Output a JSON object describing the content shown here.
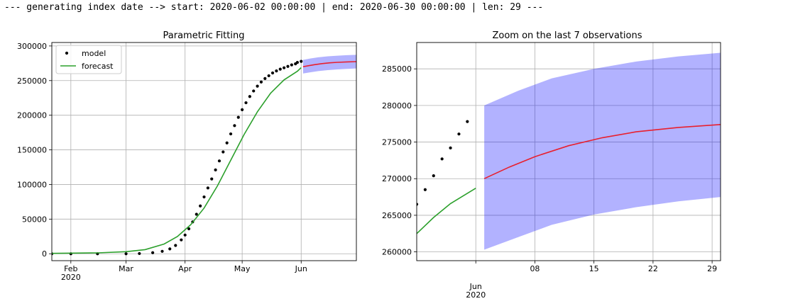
{
  "console": {
    "log_line": "--- generating index date --> start: 2020-06-02 00:00:00 | end: 2020-06-30 00:00:00 | len: 29 ---"
  },
  "colors": {
    "observed": "#000000",
    "fit": "#2ca02c",
    "forecast": "#e8202e",
    "band": "#0000ff",
    "grid": "#b0b0b0"
  },
  "chart_data": [
    {
      "type": "line",
      "title": "Parametric Fitting",
      "legend": {
        "placement": "top-left",
        "entries": [
          "model",
          "forecast"
        ]
      },
      "grid": true,
      "xlabel": "",
      "ylabel": "",
      "xlim": [
        "2020-01-22",
        "2020-06-30"
      ],
      "ylim": [
        -10000,
        305000
      ],
      "x_ticks": [
        {
          "date": "2020-02-01",
          "label": "Feb",
          "sub": "2020"
        },
        {
          "date": "2020-03-01",
          "label": "Mar",
          "sub": ""
        },
        {
          "date": "2020-04-01",
          "label": "Apr",
          "sub": ""
        },
        {
          "date": "2020-05-01",
          "label": "May",
          "sub": ""
        },
        {
          "date": "2020-06-01",
          "label": "Jun",
          "sub": ""
        }
      ],
      "y_ticks": [
        0,
        50000,
        100000,
        150000,
        200000,
        250000,
        300000
      ],
      "series": [
        {
          "name": "model",
          "style": "points",
          "points": [
            [
              "2020-01-22",
              0
            ],
            [
              "2020-02-01",
              0
            ],
            [
              "2020-02-15",
              0
            ],
            [
              "2020-03-01",
              0
            ],
            [
              "2020-03-08",
              300
            ],
            [
              "2020-03-15",
              1500
            ],
            [
              "2020-03-20",
              3500
            ],
            [
              "2020-03-24",
              7000
            ],
            [
              "2020-03-27",
              12000
            ],
            [
              "2020-03-30",
              20000
            ],
            [
              "2020-04-01",
              27000
            ],
            [
              "2020-04-03",
              36000
            ],
            [
              "2020-04-05",
              46000
            ],
            [
              "2020-04-07",
              57000
            ],
            [
              "2020-04-09",
              69000
            ],
            [
              "2020-04-11",
              82000
            ],
            [
              "2020-04-13",
              95000
            ],
            [
              "2020-04-15",
              108000
            ],
            [
              "2020-04-17",
              121000
            ],
            [
              "2020-04-19",
              134000
            ],
            [
              "2020-04-21",
              147000
            ],
            [
              "2020-04-23",
              160000
            ],
            [
              "2020-04-25",
              173000
            ],
            [
              "2020-04-27",
              185000
            ],
            [
              "2020-04-29",
              197000
            ],
            [
              "2020-05-01",
              208000
            ],
            [
              "2020-05-03",
              218000
            ],
            [
              "2020-05-05",
              227000
            ],
            [
              "2020-05-07",
              235000
            ],
            [
              "2020-05-09",
              242000
            ],
            [
              "2020-05-11",
              248000
            ],
            [
              "2020-05-13",
              253000
            ],
            [
              "2020-05-15",
              257000
            ],
            [
              "2020-05-17",
              261000
            ],
            [
              "2020-05-19",
              264000
            ],
            [
              "2020-05-21",
              266500
            ],
            [
              "2020-05-23",
              268500
            ],
            [
              "2020-05-25",
              270500
            ],
            [
              "2020-05-27",
              272700
            ],
            [
              "2020-05-29",
              274200
            ],
            [
              "2020-05-30",
              276200
            ],
            [
              "2020-06-01",
              277800
            ]
          ]
        },
        {
          "name": "forecast",
          "style": "line",
          "points": [
            [
              "2020-01-22",
              500
            ],
            [
              "2020-02-15",
              1200
            ],
            [
              "2020-03-01",
              3000
            ],
            [
              "2020-03-11",
              6000
            ],
            [
              "2020-03-21",
              14000
            ],
            [
              "2020-03-28",
              25000
            ],
            [
              "2020-04-04",
              42000
            ],
            [
              "2020-04-11",
              66000
            ],
            [
              "2020-04-18",
              98000
            ],
            [
              "2020-04-25",
              135000
            ],
            [
              "2020-05-02",
              172000
            ],
            [
              "2020-05-09",
              205000
            ],
            [
              "2020-05-16",
              232000
            ],
            [
              "2020-05-23",
              251000
            ],
            [
              "2020-05-30",
              263500
            ],
            [
              "2020-06-01",
              268700
            ]
          ]
        },
        {
          "name": "",
          "style": "line",
          "color_key": "forecast",
          "points": [
            [
              "2020-06-02",
              270000
            ],
            [
              "2020-06-05",
              271600
            ],
            [
              "2020-06-08",
              273000
            ],
            [
              "2020-06-12",
              274500
            ],
            [
              "2020-06-16",
              275600
            ],
            [
              "2020-06-20",
              276400
            ],
            [
              "2020-06-25",
              277000
            ],
            [
              "2020-06-30",
              277400
            ]
          ]
        }
      ],
      "band": {
        "upper": [
          [
            "2020-06-02",
            280000
          ],
          [
            "2020-06-06",
            282000
          ],
          [
            "2020-06-10",
            283700
          ],
          [
            "2020-06-15",
            285000
          ],
          [
            "2020-06-20",
            286000
          ],
          [
            "2020-06-25",
            286700
          ],
          [
            "2020-06-30",
            287200
          ]
        ],
        "lower": [
          [
            "2020-06-02",
            260300
          ],
          [
            "2020-06-06",
            262000
          ],
          [
            "2020-06-10",
            263700
          ],
          [
            "2020-06-15",
            265100
          ],
          [
            "2020-06-20",
            266100
          ],
          [
            "2020-06-25",
            266900
          ],
          [
            "2020-06-30",
            267500
          ]
        ]
      }
    },
    {
      "type": "line",
      "title": "Zoom on the last 7 observations",
      "grid": true,
      "xlabel": "",
      "ylabel": "",
      "xlim": [
        "2020-05-25",
        "2020-06-30"
      ],
      "ylim": [
        258800,
        288600
      ],
      "x_ticks": [
        {
          "date": "2020-06-01",
          "label": "Jun",
          "sub": "2020",
          "below": true
        },
        {
          "date": "2020-06-08",
          "label": "08",
          "sub": ""
        },
        {
          "date": "2020-06-15",
          "label": "15",
          "sub": ""
        },
        {
          "date": "2020-06-22",
          "label": "22",
          "sub": ""
        },
        {
          "date": "2020-06-29",
          "label": "29",
          "sub": ""
        }
      ],
      "y_ticks": [
        260000,
        265000,
        270000,
        275000,
        280000,
        285000
      ],
      "series": [
        {
          "name": "",
          "style": "points",
          "points": [
            [
              "2020-05-25",
              266500
            ],
            [
              "2020-05-26",
              268500
            ],
            [
              "2020-05-27",
              270400
            ],
            [
              "2020-05-28",
              272700
            ],
            [
              "2020-05-29",
              274200
            ],
            [
              "2020-05-30",
              276100
            ],
            [
              "2020-05-31",
              277800
            ]
          ]
        },
        {
          "name": "",
          "style": "line",
          "color_key": "fit",
          "points": [
            [
              "2020-05-25",
              262500
            ],
            [
              "2020-05-27",
              264700
            ],
            [
              "2020-05-29",
              266600
            ],
            [
              "2020-06-01",
              268700
            ]
          ]
        },
        {
          "name": "",
          "style": "line",
          "color_key": "forecast",
          "points": [
            [
              "2020-06-02",
              270000
            ],
            [
              "2020-06-05",
              271600
            ],
            [
              "2020-06-08",
              273000
            ],
            [
              "2020-06-12",
              274500
            ],
            [
              "2020-06-16",
              275600
            ],
            [
              "2020-06-20",
              276400
            ],
            [
              "2020-06-25",
              277000
            ],
            [
              "2020-06-30",
              277400
            ]
          ]
        }
      ],
      "band": {
        "upper": [
          [
            "2020-06-02",
            280000
          ],
          [
            "2020-06-06",
            282000
          ],
          [
            "2020-06-10",
            283700
          ],
          [
            "2020-06-15",
            285000
          ],
          [
            "2020-06-20",
            286000
          ],
          [
            "2020-06-25",
            286700
          ],
          [
            "2020-06-30",
            287200
          ]
        ],
        "lower": [
          [
            "2020-06-02",
            260300
          ],
          [
            "2020-06-06",
            262000
          ],
          [
            "2020-06-10",
            263700
          ],
          [
            "2020-06-15",
            265100
          ],
          [
            "2020-06-20",
            266100
          ],
          [
            "2020-06-25",
            266900
          ],
          [
            "2020-06-30",
            267500
          ]
        ]
      }
    }
  ]
}
